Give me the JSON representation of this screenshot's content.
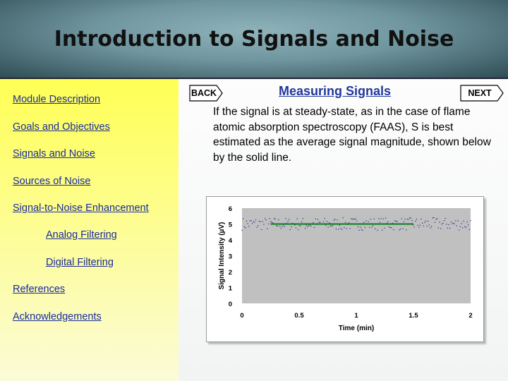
{
  "header": {
    "title": "Introduction to Signals and Noise"
  },
  "sidebar": {
    "items": [
      {
        "label": "Module Description"
      },
      {
        "label": "Goals and Objectives"
      },
      {
        "label": "Signals and Noise"
      },
      {
        "label": "Sources of Noise"
      },
      {
        "label": "Signal-to-Noise Enhancement"
      },
      {
        "label": "Analog Filtering"
      },
      {
        "label": "Digital Filtering"
      },
      {
        "label": "References"
      },
      {
        "label": "Acknowledgements"
      }
    ]
  },
  "main": {
    "back_label": "BACK",
    "next_label": "NEXT",
    "section_title": "Measuring Signals",
    "body": "If the signal is at steady-state, as in the case of flame atomic absorption spectroscopy (FAAS), S is best estimated as the average signal magnitude, shown below by the solid line."
  },
  "colors": {
    "plot_bg": "#c0c0c0",
    "points": "#1f2a8a",
    "average_line": "#0a7a1a",
    "link": "#1a2c9a"
  },
  "chart_data": {
    "type": "scatter",
    "title": "",
    "xlabel": "Time (min)",
    "ylabel": "Signal Intensity (µV)",
    "xlim": [
      0,
      2
    ],
    "ylim": [
      0,
      6
    ],
    "x_ticks": [
      "0",
      "0.5",
      "1",
      "1.5",
      "2"
    ],
    "y_ticks": [
      "0",
      "1",
      "2",
      "3",
      "4",
      "5",
      "6"
    ],
    "grid": false,
    "series": [
      {
        "mean": 5.0,
        "noise_range": [
          4.6,
          5.4
        ],
        "x_range": [
          0,
          2
        ],
        "n_points": 200
      }
    ],
    "average_line": {
      "y": 5.0,
      "x_range": [
        0.25,
        1.5
      ]
    }
  }
}
